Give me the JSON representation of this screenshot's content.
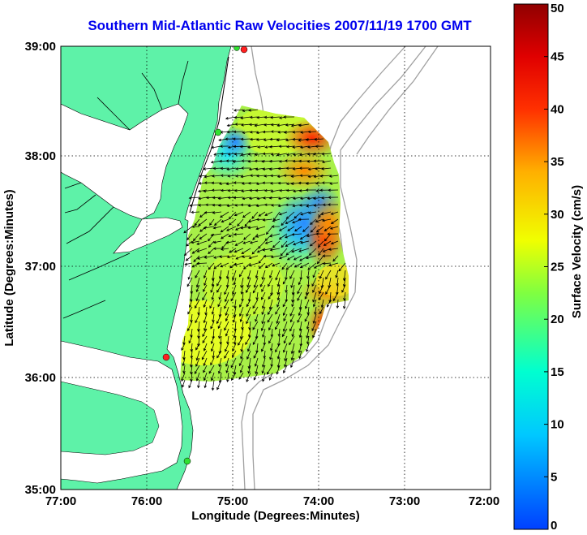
{
  "title": "Southern Mid-Atlantic Raw Velocities 2007/11/19 1700 GMT",
  "x_axis": {
    "label": "Longitude (Degrees:Minutes)",
    "ticks": [
      "77:00",
      "76:00",
      "75:00",
      "74:00",
      "73:00",
      "72:00"
    ]
  },
  "y_axis": {
    "label": "Latitude (Degrees:Minutes)",
    "ticks": [
      "39:00",
      "38:00",
      "37:00",
      "36:00",
      "35:00"
    ]
  },
  "colorbar": {
    "label": "Surface Velocity (cm/s)",
    "ticks": [
      "50",
      "45",
      "40",
      "35",
      "30",
      "25",
      "20",
      "15",
      "10",
      "5",
      "0"
    ],
    "range": [
      0,
      50
    ]
  },
  "colors": {
    "land": "#5ef2a8",
    "water": "#ffffff",
    "title": "#0000ee",
    "grid": "#000000",
    "bathymetry": "#a0a0a0"
  },
  "stations": [
    "red-station",
    "red-station",
    "green-station",
    "green-station"
  ]
}
